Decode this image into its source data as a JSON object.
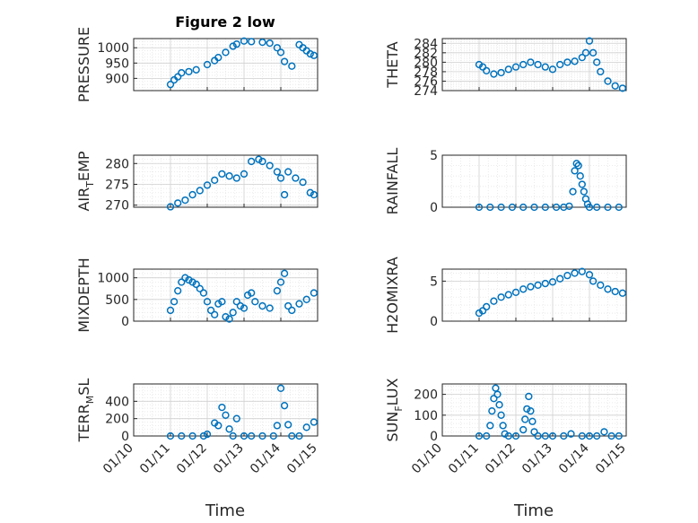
{
  "figure_title": "Figure 2 low",
  "colors": {
    "marker": "#0072BD",
    "grid": "#d6d6d6",
    "axis": "#262626"
  },
  "chart_data": [
    {
      "type": "scatter",
      "ylabel": "PRESSURE",
      "xlim": [
        "01/10",
        "01/15"
      ],
      "ylim": [
        860,
        1030
      ],
      "yticks": [
        900,
        950,
        1000
      ],
      "yticklabels": [
        "900",
        "950",
        "1000"
      ],
      "grid": true,
      "x": [
        11.0,
        11.1,
        11.2,
        11.3,
        11.5,
        11.7,
        12.0,
        12.2,
        12.3,
        12.5,
        12.7,
        12.8,
        13.0,
        13.2,
        13.5,
        13.7,
        13.9,
        14.0,
        14.1,
        14.3,
        14.5,
        14.6,
        14.7,
        14.8,
        14.9
      ],
      "y": [
        880,
        895,
        905,
        918,
        922,
        928,
        945,
        958,
        968,
        985,
        1005,
        1012,
        1022,
        1020,
        1018,
        1015,
        1000,
        985,
        955,
        940,
        1010,
        1000,
        990,
        980,
        975
      ]
    },
    {
      "type": "scatter",
      "ylabel": "THETA",
      "xlim": [
        "01/10",
        "01/15"
      ],
      "ylim": [
        274,
        285
      ],
      "yticks": [
        274,
        276,
        278,
        280,
        282,
        284
      ],
      "yticklabels": [
        "274",
        "276",
        "278",
        "280",
        "282",
        "284"
      ],
      "grid": true,
      "x": [
        11.0,
        11.1,
        11.2,
        11.4,
        11.6,
        11.8,
        12.0,
        12.2,
        12.4,
        12.6,
        12.8,
        13.0,
        13.2,
        13.4,
        13.6,
        13.8,
        13.9,
        14.0,
        14.1,
        14.2,
        14.3,
        14.5,
        14.7,
        14.9
      ],
      "y": [
        279.5,
        279,
        278.2,
        277.5,
        277.8,
        278.5,
        279,
        279.5,
        280,
        279.5,
        279,
        278.5,
        279.5,
        280,
        280.2,
        281,
        282,
        284.5,
        282,
        280,
        278,
        276,
        275,
        274.5
      ]
    },
    {
      "type": "scatter",
      "ylabel": "AIR_TEMP",
      "ylabel_main": "AIR",
      "ylabel_sub": "T",
      "ylabel_rest": "EMP",
      "xlim": [
        "01/10",
        "01/15"
      ],
      "ylim": [
        269.5,
        282
      ],
      "yticks": [
        270,
        275,
        280
      ],
      "yticklabels": [
        "270",
        "275",
        "280"
      ],
      "grid": true,
      "x": [
        11.0,
        11.2,
        11.4,
        11.6,
        11.8,
        12.0,
        12.2,
        12.4,
        12.6,
        12.8,
        13.0,
        13.2,
        13.4,
        13.5,
        13.7,
        13.9,
        14.0,
        14.1,
        14.2,
        14.4,
        14.6,
        14.8,
        14.9
      ],
      "y": [
        269.6,
        270.5,
        271.2,
        272.5,
        273.5,
        274.8,
        276,
        277.5,
        277,
        276.5,
        277.5,
        280.5,
        281,
        280.5,
        279.5,
        278,
        276.5,
        272.5,
        278,
        276.5,
        275.5,
        273,
        272.5
      ]
    },
    {
      "type": "scatter",
      "ylabel": "RAINFALL",
      "xlim": [
        "01/10",
        "01/15"
      ],
      "ylim": [
        0,
        5
      ],
      "yticks": [
        0,
        5
      ],
      "yticklabels": [
        "0",
        "5"
      ],
      "grid": true,
      "x": [
        11.0,
        11.3,
        11.6,
        11.9,
        12.2,
        12.5,
        12.8,
        13.1,
        13.3,
        13.45,
        13.55,
        13.6,
        13.65,
        13.7,
        13.75,
        13.8,
        13.85,
        13.9,
        13.95,
        14.0,
        14.2,
        14.5,
        14.8
      ],
      "y": [
        0,
        0,
        0,
        0,
        0,
        0,
        0,
        0,
        0,
        0.1,
        1.5,
        3.5,
        4.2,
        4.0,
        3.0,
        2.2,
        1.5,
        0.8,
        0.3,
        0,
        0,
        0,
        0
      ]
    },
    {
      "type": "scatter",
      "ylabel": "MIXDEPTH",
      "xlim": [
        "01/10",
        "01/15"
      ],
      "ylim": [
        0,
        1200
      ],
      "yticks": [
        0,
        500,
        1000
      ],
      "yticklabels": [
        "0",
        "500",
        "1000"
      ],
      "grid": true,
      "x": [
        11.0,
        11.1,
        11.2,
        11.3,
        11.4,
        11.5,
        11.6,
        11.7,
        11.8,
        11.9,
        12.0,
        12.1,
        12.2,
        12.3,
        12.4,
        12.5,
        12.6,
        12.7,
        12.8,
        12.9,
        13.0,
        13.1,
        13.2,
        13.3,
        13.5,
        13.7,
        13.9,
        14.0,
        14.1,
        14.2,
        14.3,
        14.5,
        14.7,
        14.9
      ],
      "y": [
        250,
        450,
        700,
        900,
        1000,
        950,
        900,
        850,
        750,
        650,
        450,
        250,
        150,
        400,
        450,
        100,
        50,
        200,
        450,
        350,
        300,
        600,
        650,
        450,
        350,
        300,
        700,
        900,
        1100,
        350,
        250,
        400,
        500,
        650
      ]
    },
    {
      "type": "scatter",
      "ylabel": "H2OMIXRA",
      "xlim": [
        "01/10",
        "01/15"
      ],
      "ylim": [
        0,
        6.5
      ],
      "yticks": [
        0,
        5
      ],
      "yticklabels": [
        "0",
        "5"
      ],
      "grid": true,
      "x": [
        11.0,
        11.1,
        11.2,
        11.4,
        11.6,
        11.8,
        12.0,
        12.2,
        12.4,
        12.6,
        12.8,
        13.0,
        13.2,
        13.4,
        13.6,
        13.8,
        14.0,
        14.1,
        14.3,
        14.5,
        14.7,
        14.9
      ],
      "y": [
        1.0,
        1.3,
        1.8,
        2.5,
        3.0,
        3.3,
        3.6,
        4.0,
        4.3,
        4.5,
        4.7,
        4.9,
        5.3,
        5.7,
        6.0,
        6.2,
        5.8,
        5.0,
        4.5,
        4.0,
        3.7,
        3.5
      ]
    },
    {
      "type": "scatter",
      "ylabel": "TERR_MSL",
      "ylabel_main": "TERR",
      "ylabel_sub": "M",
      "ylabel_rest": "SL",
      "xlim": [
        "01/10",
        "01/15"
      ],
      "ylim": [
        0,
        600
      ],
      "yticks": [
        0,
        200,
        400
      ],
      "yticklabels": [
        "0",
        "200",
        "400"
      ],
      "grid": true,
      "x": [
        11.0,
        11.3,
        11.6,
        11.9,
        12.0,
        12.2,
        12.3,
        12.4,
        12.5,
        12.6,
        12.7,
        12.8,
        13.0,
        13.2,
        13.5,
        13.8,
        13.9,
        14.0,
        14.1,
        14.2,
        14.3,
        14.5,
        14.7,
        14.9
      ],
      "y": [
        0,
        0,
        0,
        0,
        20,
        150,
        120,
        330,
        240,
        80,
        0,
        200,
        0,
        0,
        0,
        0,
        120,
        550,
        350,
        130,
        0,
        0,
        100,
        160
      ]
    },
    {
      "type": "scatter",
      "ylabel": "SUN_FLUX",
      "ylabel_main": "SUN",
      "ylabel_sub": "F",
      "ylabel_rest": "LUX",
      "xlim": [
        "01/10",
        "01/15"
      ],
      "ylim": [
        0,
        250
      ],
      "yticks": [
        0,
        100,
        200
      ],
      "yticklabels": [
        "0",
        "100",
        "200"
      ],
      "grid": true,
      "x": [
        11.0,
        11.2,
        11.3,
        11.35,
        11.4,
        11.45,
        11.5,
        11.55,
        11.6,
        11.65,
        11.7,
        11.8,
        12.0,
        12.2,
        12.25,
        12.3,
        12.35,
        12.4,
        12.45,
        12.5,
        12.6,
        12.8,
        13.0,
        13.3,
        13.5,
        13.8,
        14.0,
        14.2,
        14.4,
        14.6,
        14.8
      ],
      "y": [
        0,
        0,
        50,
        120,
        180,
        230,
        200,
        150,
        100,
        50,
        10,
        0,
        0,
        30,
        80,
        130,
        190,
        120,
        70,
        20,
        0,
        0,
        0,
        0,
        10,
        0,
        0,
        0,
        20,
        0,
        0
      ]
    }
  ],
  "xticklabels": [
    "01/10",
    "01/11",
    "01/12",
    "01/13",
    "01/14",
    "01/15"
  ],
  "xlabel": "Time"
}
